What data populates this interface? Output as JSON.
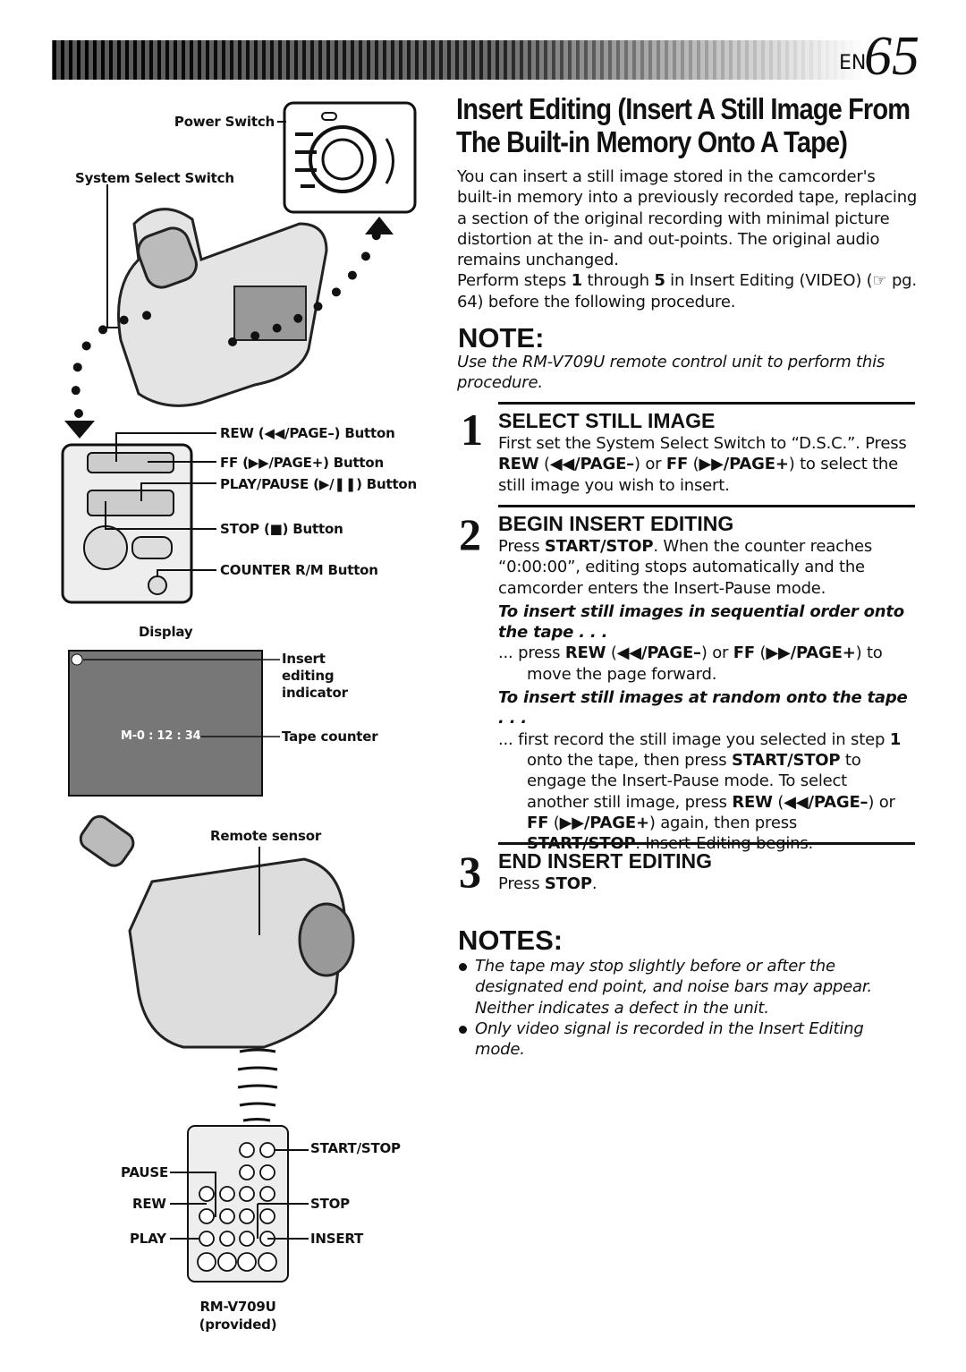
{
  "header": {
    "lang": "EN",
    "page": "65"
  },
  "title": {
    "lines": [
      "Insert Editing (Insert A Still Image From",
      "The Built-in Memory Onto A Tape)"
    ]
  },
  "intro": [
    [
      "You can insert a still image stored in the camcorder's built-in memory into a previously recorded tape, replacing a section of the original recording with minimal picture distortion at the in- and out-points. The original audio remains unchanged."
    ],
    [
      "Perform steps ",
      "1",
      " through ",
      "5",
      " in Insert Editing (VIDEO) (☞ pg. 64) before the following procedure."
    ]
  ],
  "note": {
    "heading": "NOTE:",
    "text": "Use the RM-V709U remote control unit to perform this procedure."
  },
  "steps": [
    {
      "number": "1",
      "heading": "SELECT STILL IMAGE",
      "body": [
        "First set the System Select Switch to “D.S.C.”. Press ",
        "REW",
        " (",
        "◀◀/PAGE–",
        ") or ",
        "FF",
        " (",
        "▶▶/PAGE+",
        ") to select the still image you wish to insert."
      ]
    },
    {
      "number": "2",
      "heading": "BEGIN INSERT EDITING",
      "body": [
        "Press ",
        "START/STOP",
        ". When the counter reaches “0:00:00”, editing stops automatically and the camcorder enters the Insert-Pause mode."
      ],
      "cases": [
        {
          "subhead": "To insert still images in sequential order onto the tape . . .",
          "text": [
            "... press ",
            "REW",
            " (",
            "◀◀/PAGE–",
            ") or ",
            "FF",
            " (",
            "▶▶/PAGE+",
            ") to move the page forward."
          ]
        },
        {
          "subhead": "To insert still images at random onto the tape . . .",
          "text": [
            "... first record the still image you selected in step ",
            "1",
            " onto the tape, then press ",
            "START/STOP",
            " to engage the Insert-Pause mode. To select another still image, press ",
            "REW",
            " (",
            "◀◀/PAGE–",
            ") or ",
            "FF",
            " (",
            "▶▶/PAGE+",
            ") again, then press ",
            "START/STOP",
            ". Insert-Editing begins."
          ]
        }
      ]
    },
    {
      "number": "3",
      "heading": "END INSERT EDITING",
      "body": [
        "Press ",
        "STOP",
        "."
      ]
    }
  ],
  "notes": {
    "heading": "NOTES:",
    "items": [
      "The tape may stop slightly before or after the designated end point, and noise bars may appear. Neither indicates a defect in the unit.",
      "Only video signal is recorded in the Insert Editing mode."
    ]
  },
  "figure": {
    "power_switch": "Power Switch",
    "system_select_switch": "System Select Switch",
    "buttons": [
      "REW (◀◀/PAGE–) Button",
      "FF (▶▶/PAGE+) Button",
      "PLAY/PAUSE (▶/❚❚) Button",
      "STOP (■) Button",
      "COUNTER R/M Button"
    ],
    "display": {
      "label": "Display",
      "counter": "M-0 : 12 : 34",
      "indicator": "Insert editing indicator",
      "tape_counter": "Tape counter"
    },
    "remote_sensor": "Remote sensor",
    "remote": {
      "start_stop": "START/STOP",
      "pause": "PAUSE",
      "rew": "REW",
      "stop": "STOP",
      "play": "PLAY",
      "insert": "INSERT",
      "model": "RM-V709U",
      "provided": "(provided)"
    }
  }
}
